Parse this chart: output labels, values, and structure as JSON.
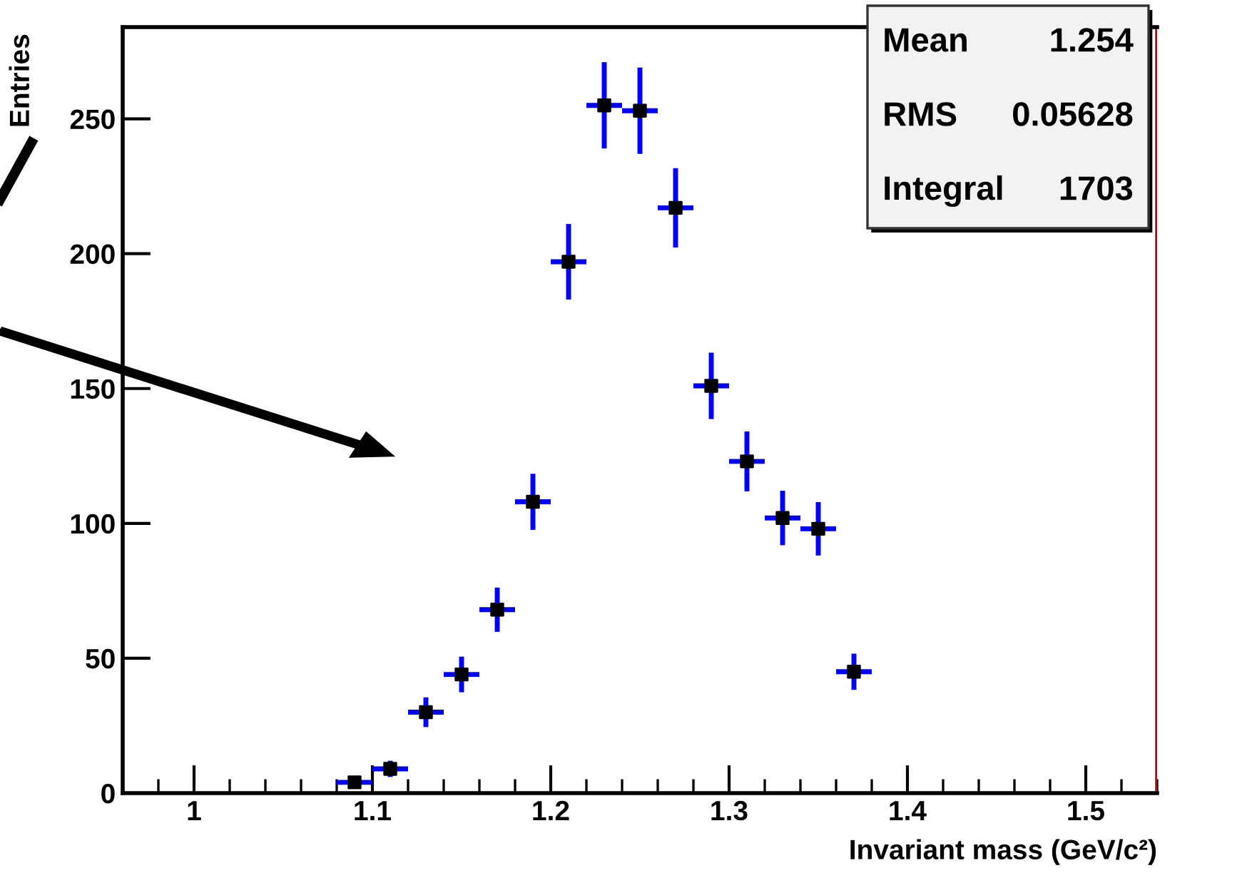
{
  "chart_data": {
    "type": "scatter",
    "xlabel": "Invariant mass (GeV/c²)",
    "ylabel": "Entries",
    "x": [
      1.09,
      1.11,
      1.13,
      1.15,
      1.17,
      1.19,
      1.21,
      1.23,
      1.25,
      1.27,
      1.29,
      1.31,
      1.33,
      1.35,
      1.37
    ],
    "series": [
      {
        "color": "#000000",
        "values": [
          4,
          9,
          30,
          44,
          68,
          108,
          197,
          255,
          253,
          217,
          151,
          123,
          102,
          98,
          45
        ],
        "errors": [
          null,
          3,
          5.5,
          6.6,
          8.2,
          10.4,
          14,
          16,
          16,
          14.7,
          12.3,
          11.1,
          10.1,
          9.9,
          6.7
        ],
        "xerrors": [
          0.01,
          0.01,
          0.01,
          0.01,
          0.01,
          0.01,
          0.01,
          0.01,
          0.01,
          0.01,
          0.01,
          0.01,
          0.01,
          0.01,
          0.01
        ]
      }
    ],
    "marker": "square",
    "xlim": [
      0.96,
      1.54
    ],
    "ylim": [
      0,
      284
    ],
    "xticks": [
      1,
      1.1,
      1.2,
      1.3,
      1.4,
      1.5
    ],
    "yticks": [
      0,
      50,
      100,
      150,
      200,
      250
    ],
    "ref_lines": [
      {
        "axis": "x",
        "value": 1.54,
        "label": null,
        "color": "#cc0000"
      }
    ],
    "annotations": [
      "Mean",
      "1.254",
      "RMS",
      "0.05628",
      "Integral",
      "1703"
    ],
    "grid": false,
    "legend": false
  }
}
